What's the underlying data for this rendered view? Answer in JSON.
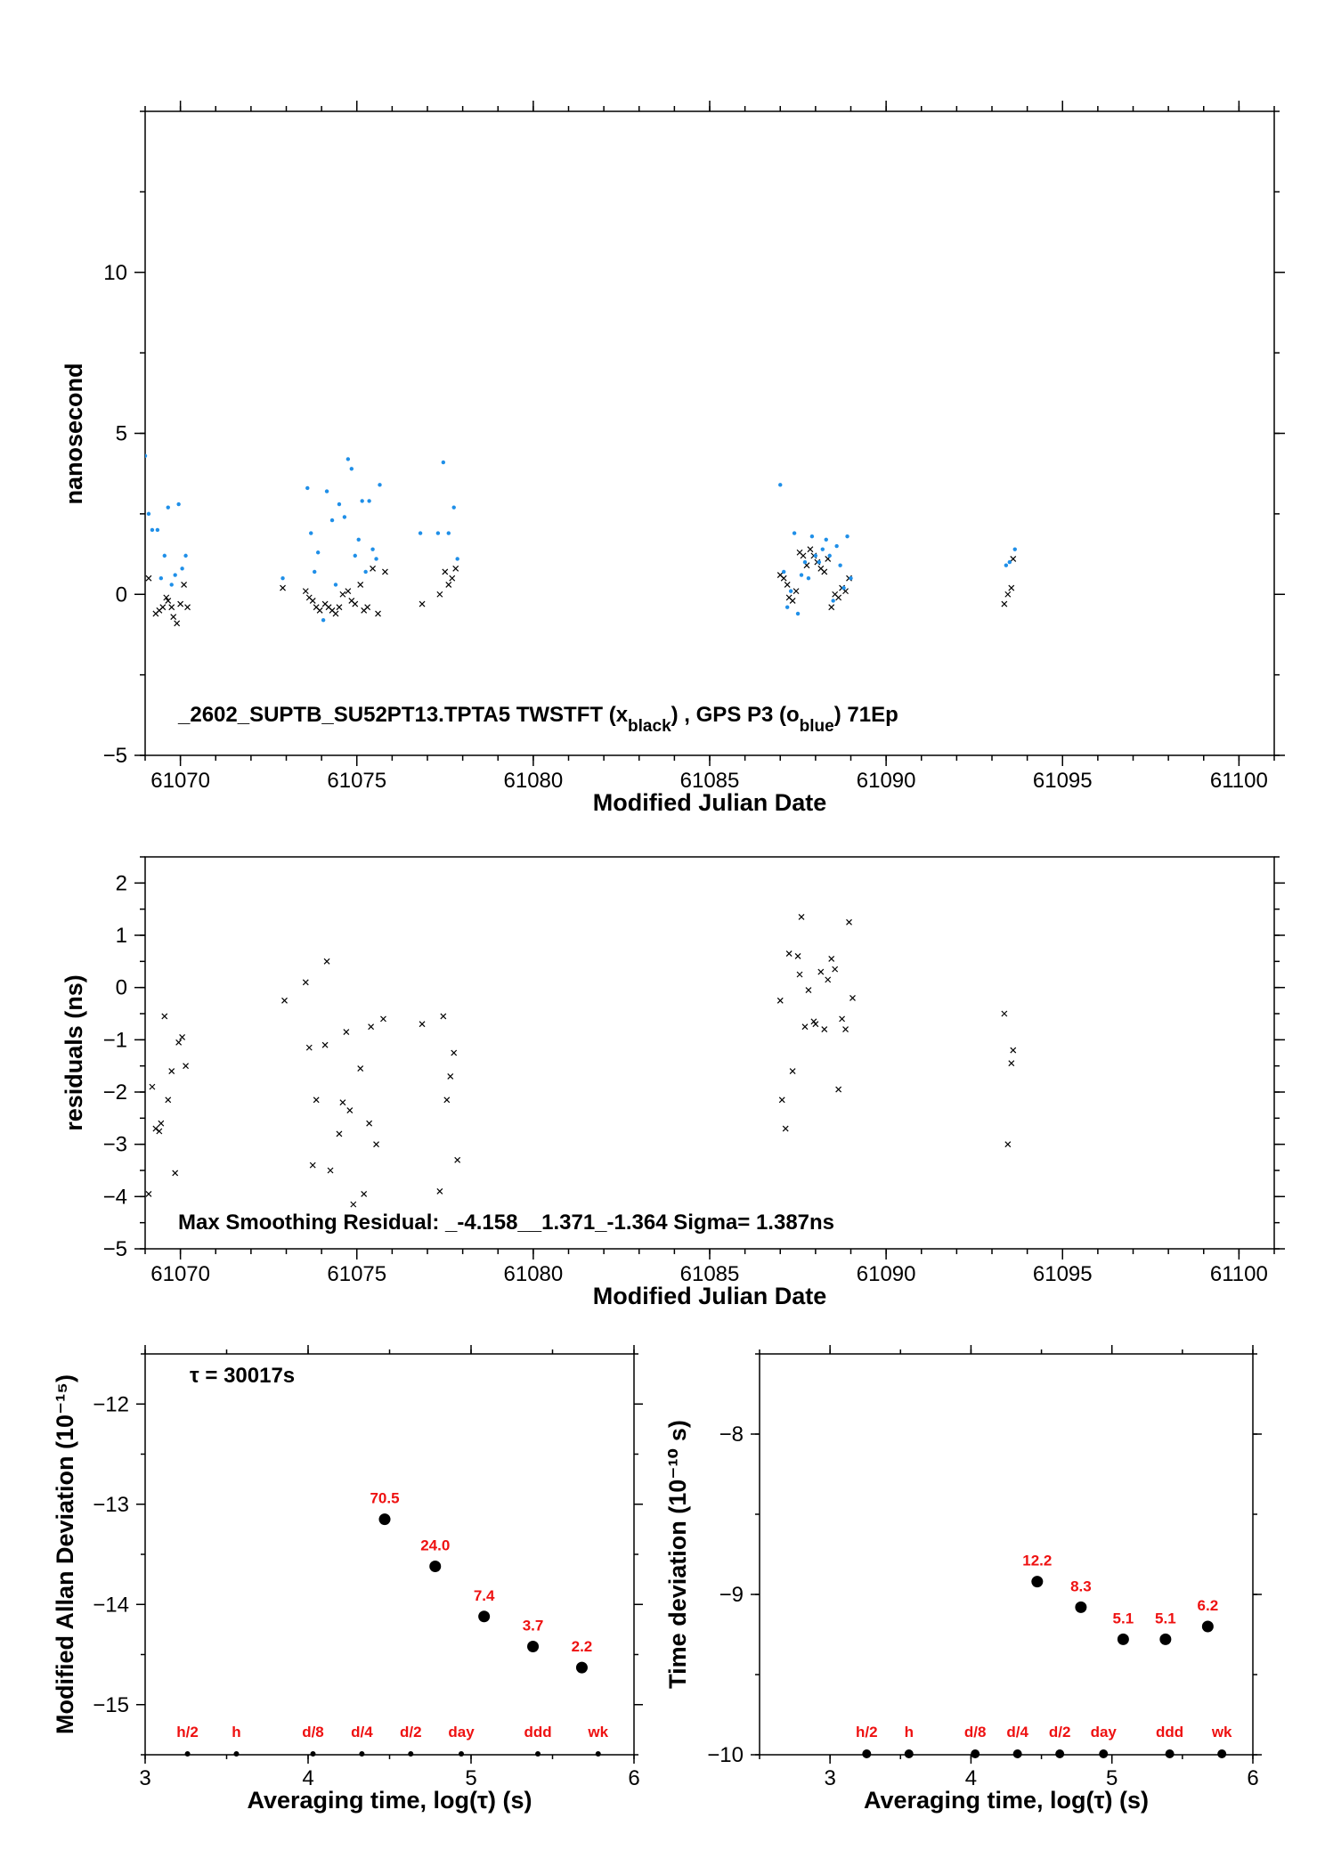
{
  "chart_data": [
    {
      "type": "scatter",
      "title": "",
      "annotation": {
        "prefix": "_2602_SUPTB_SU52PT13.TPTA5     TWSTFT (x",
        "sub1": "black",
        "mid": ") ,  GPS P3 (o",
        "sub2": "blue",
        "suffix": ")  71Ep"
      },
      "xlabel": "Modified Julian Date",
      "ylabel": "nanosecond",
      "xlim": [
        61069,
        61101
      ],
      "ylim": [
        -5,
        15
      ],
      "xticks": [
        "61070",
        "61075",
        "61080",
        "61085",
        "61090",
        "61095",
        "61100"
      ],
      "yticks": [
        "−5",
        "0",
        "5",
        "10"
      ],
      "series": [
        {
          "marker": "x",
          "color": "#000000",
          "x": [
            61069.1,
            61069.3,
            61069.4,
            61069.5,
            61069.6,
            61069.65,
            61069.75,
            61069.8,
            61069.9,
            61070.0,
            61070.1,
            61070.2,
            61072.9,
            61073.55,
            61073.65,
            61073.75,
            61073.85,
            61073.95,
            61074.1,
            61074.2,
            61074.3,
            61074.4,
            61074.5,
            61074.6,
            61074.75,
            61074.85,
            61074.95,
            61075.1,
            61075.2,
            61075.3,
            61075.45,
            61075.6,
            61075.8,
            61076.85,
            61077.35,
            61077.5,
            61077.6,
            61077.7,
            61077.8,
            61087.0,
            61087.1,
            61087.2,
            61087.25,
            61087.35,
            61087.45,
            61087.55,
            61087.65,
            61087.75,
            61087.85,
            61087.95,
            61088.05,
            61088.15,
            61088.25,
            61088.35,
            61088.45,
            61088.55,
            61088.65,
            61088.75,
            61088.85,
            61088.95,
            61093.35,
            61093.45,
            61093.55,
            61093.6
          ],
          "y": [
            0.5,
            -0.6,
            -0.5,
            -0.4,
            -0.1,
            -0.2,
            -0.4,
            -0.7,
            -0.9,
            -0.3,
            0.3,
            -0.4,
            0.2,
            0.1,
            -0.1,
            -0.2,
            -0.4,
            -0.5,
            -0.3,
            -0.4,
            -0.5,
            -0.6,
            -0.4,
            0.0,
            0.1,
            -0.2,
            -0.3,
            0.3,
            -0.5,
            -0.4,
            0.8,
            -0.6,
            0.7,
            -0.3,
            0.0,
            0.7,
            0.3,
            0.5,
            0.8,
            0.6,
            0.5,
            0.3,
            -0.1,
            -0.2,
            0.1,
            1.3,
            1.2,
            0.9,
            1.4,
            1.2,
            1.0,
            0.8,
            0.7,
            1.1,
            -0.4,
            0.0,
            -0.1,
            0.2,
            0.1,
            0.5,
            -0.3,
            0.0,
            0.2,
            1.1
          ]
        },
        {
          "marker": "o",
          "color": "#1f8fe8",
          "x": [
            61069.0,
            61069.1,
            61069.2,
            61069.35,
            61069.45,
            61069.55,
            61069.65,
            61069.75,
            61069.85,
            61069.95,
            61070.05,
            61070.15,
            61072.9,
            61073.6,
            61073.7,
            61073.8,
            61073.9,
            61074.05,
            61074.15,
            61074.3,
            61074.4,
            61074.5,
            61074.65,
            61074.75,
            61074.85,
            61074.95,
            61075.05,
            61075.15,
            61075.25,
            61075.35,
            61075.45,
            61075.55,
            61075.65,
            61076.8,
            61077.3,
            61077.45,
            61077.6,
            61077.75,
            61077.85,
            61087.0,
            61087.1,
            61087.2,
            61087.3,
            61087.4,
            61087.5,
            61087.6,
            61087.7,
            61087.8,
            61087.9,
            61088.0,
            61088.1,
            61088.2,
            61088.3,
            61088.4,
            61088.5,
            61088.6,
            61088.7,
            61088.8,
            61088.9,
            61089.0,
            61093.4,
            61093.5,
            61093.65
          ],
          "y": [
            4.3,
            2.5,
            2.0,
            2.0,
            0.5,
            1.2,
            2.7,
            0.3,
            0.6,
            2.8,
            0.8,
            1.2,
            0.5,
            3.3,
            1.9,
            0.7,
            1.3,
            -0.8,
            3.2,
            2.3,
            0.3,
            2.8,
            2.4,
            4.2,
            3.9,
            1.2,
            1.7,
            2.9,
            0.7,
            2.9,
            1.4,
            1.1,
            3.4,
            1.9,
            1.9,
            4.1,
            1.9,
            2.7,
            1.1,
            3.4,
            0.7,
            -0.4,
            0.1,
            1.9,
            -0.6,
            0.6,
            1.0,
            0.5,
            1.8,
            1.2,
            1.0,
            1.4,
            1.7,
            1.2,
            -0.2,
            1.5,
            0.9,
            0.2,
            1.8,
            0.5,
            0.9,
            1.0,
            1.4
          ]
        }
      ]
    },
    {
      "type": "scatter",
      "title": "",
      "annotation": "Max Smoothing Residual: _-4.158__1.371_-1.364  Sigma= 1.387ns",
      "xlabel": "Modified Julian Date",
      "ylabel": "residuals (ns)",
      "xlim": [
        61069,
        61101
      ],
      "ylim": [
        -5,
        2.5
      ],
      "xticks": [
        "61070",
        "61075",
        "61080",
        "61085",
        "61090",
        "61095",
        "61100"
      ],
      "yticks": [
        "−5",
        "−4",
        "−3",
        "−2",
        "−1",
        "0",
        "1",
        "2"
      ],
      "series": [
        {
          "marker": "x",
          "color": "#000000",
          "x": [
            61069.1,
            61069.2,
            61069.3,
            61069.4,
            61069.45,
            61069.55,
            61069.65,
            61069.75,
            61069.85,
            61069.95,
            61070.05,
            61070.15,
            61072.95,
            61073.55,
            61073.65,
            61073.75,
            61073.85,
            61074.1,
            61074.15,
            61074.25,
            61074.5,
            61074.6,
            61074.7,
            61074.8,
            61074.9,
            61075.1,
            61075.2,
            61075.35,
            61075.4,
            61075.55,
            61075.75,
            61076.85,
            61077.35,
            61077.45,
            61077.55,
            61077.65,
            61077.75,
            61077.85,
            61087.0,
            61087.05,
            61087.15,
            61087.25,
            61087.35,
            61087.5,
            61087.55,
            61087.6,
            61087.7,
            61087.8,
            61087.95,
            61088.0,
            61088.15,
            61088.25,
            61088.35,
            61088.45,
            61088.55,
            61088.65,
            61088.75,
            61088.85,
            61088.95,
            61089.05,
            61093.35,
            61093.45,
            61093.55,
            61093.6
          ],
          "y": [
            -3.95,
            -1.9,
            -2.7,
            -2.75,
            -2.6,
            -0.55,
            -2.15,
            -1.6,
            -3.55,
            -1.05,
            -0.95,
            -1.5,
            -0.25,
            0.1,
            -1.15,
            -3.4,
            -2.15,
            -1.1,
            0.5,
            -3.5,
            -2.8,
            -2.2,
            -0.85,
            -2.35,
            -4.15,
            -1.55,
            -3.95,
            -2.6,
            -0.75,
            -3.0,
            -0.6,
            -0.7,
            -3.9,
            -0.55,
            -2.15,
            -1.7,
            -1.25,
            -3.3,
            -0.25,
            -2.15,
            -2.7,
            0.65,
            -1.6,
            0.6,
            0.25,
            1.35,
            -0.75,
            -0.05,
            -0.65,
            -0.7,
            0.3,
            -0.8,
            0.15,
            0.55,
            0.35,
            -1.95,
            -0.6,
            -0.8,
            1.25,
            -0.2,
            -0.5,
            -3.0,
            -1.45,
            -1.2
          ]
        }
      ]
    },
    {
      "type": "scatter",
      "title": "",
      "annotation": "τ = 30017s",
      "xlabel": "Averaging time, log(τ) (s)",
      "ylabel": "Modified Allan Deviation (10⁻¹⁵)",
      "xlim": [
        3,
        6
      ],
      "ylim": [
        -15.5,
        -11.5
      ],
      "xticks": [
        "3",
        "4",
        "5",
        "6"
      ],
      "yticks": [
        "−15",
        "−14",
        "−13",
        "−12"
      ],
      "points": {
        "x": [
          4.47,
          4.78,
          5.08,
          5.38,
          5.68
        ],
        "y": [
          -13.15,
          -13.62,
          -14.12,
          -14.42,
          -14.63
        ],
        "labels": [
          "70.5",
          "24.0",
          "7.4",
          "3.7",
          "2.2"
        ]
      },
      "markers": {
        "x": [
          3.26,
          3.56,
          4.03,
          4.33,
          4.63,
          4.94,
          5.41,
          5.78
        ],
        "labels": [
          "h/2",
          "h",
          "d/8",
          "d/4",
          "d/2",
          "day",
          "ddd",
          "wk"
        ]
      }
    },
    {
      "type": "scatter",
      "title": "",
      "xlabel": "Averaging time, log(τ) (s)",
      "ylabel": "Time deviation (10⁻¹⁰ s)",
      "xlim": [
        2.5,
        6
      ],
      "ylim": [
        -10,
        -7.5
      ],
      "xticks": [
        "3",
        "4",
        "5",
        "6"
      ],
      "yticks": [
        "−10",
        "−9",
        "−8"
      ],
      "points": {
        "x": [
          4.47,
          4.78,
          5.08,
          5.38,
          5.68
        ],
        "y": [
          -8.92,
          -9.08,
          -9.28,
          -9.28,
          -9.2
        ],
        "labels": [
          "12.2",
          "8.3",
          "5.1",
          "5.1",
          "6.2"
        ]
      },
      "markers": {
        "x": [
          3.26,
          3.56,
          4.03,
          4.33,
          4.63,
          4.94,
          5.41,
          5.78
        ],
        "labels": [
          "h/2",
          "h",
          "d/8",
          "d/4",
          "d/2",
          "day",
          "ddd",
          "wk"
        ]
      }
    }
  ]
}
